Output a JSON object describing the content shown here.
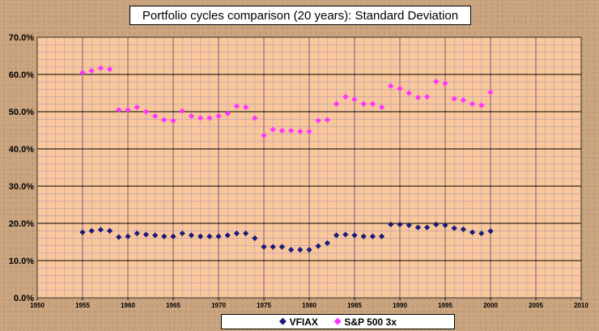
{
  "chart_data": {
    "type": "scatter",
    "title": "Portfolio cycles comparison (20 years): Standard Deviation",
    "xlabel": "",
    "ylabel": "",
    "xlim": [
      1950,
      2010
    ],
    "ylim": [
      0,
      70
    ],
    "x_ticks": [
      "1950",
      "1955",
      "1960",
      "1965",
      "1970",
      "1975",
      "1980",
      "1985",
      "1990",
      "1995",
      "2000",
      "2005",
      "2010"
    ],
    "y_ticks": [
      "0.0%",
      "10.0%",
      "20.0%",
      "30.0%",
      "40.0%",
      "50.0%",
      "60.0%",
      "70.0%"
    ],
    "grid": true,
    "legend_position": "bottom",
    "x": [
      1955,
      1956,
      1957,
      1958,
      1959,
      1960,
      1961,
      1962,
      1963,
      1964,
      1965,
      1966,
      1967,
      1968,
      1969,
      1970,
      1971,
      1972,
      1973,
      1974,
      1975,
      1976,
      1977,
      1978,
      1979,
      1980,
      1981,
      1982,
      1983,
      1984,
      1985,
      1986,
      1987,
      1988,
      1989,
      1990,
      1991,
      1992,
      1993,
      1994,
      1995,
      1996,
      1997,
      1998,
      1999,
      2000
    ],
    "series": [
      {
        "name": "VFIAX",
        "color": "#1a1a7a",
        "values": [
          17.6,
          18.0,
          18.3,
          18.0,
          16.3,
          16.5,
          17.3,
          17.0,
          16.8,
          16.5,
          16.5,
          17.3,
          16.8,
          16.5,
          16.5,
          16.5,
          16.8,
          17.3,
          17.3,
          16.0,
          13.7,
          13.7,
          13.7,
          12.9,
          12.9,
          12.9,
          13.9,
          14.7,
          16.8,
          17.0,
          16.8,
          16.5,
          16.5,
          16.5,
          19.7,
          19.7,
          19.5,
          18.9,
          18.9,
          19.7,
          19.5,
          18.7,
          18.4,
          17.6,
          17.3,
          17.9
        ]
      },
      {
        "name": "S&P 500 3x",
        "color": "#ff33ff",
        "values": [
          60.5,
          61.0,
          61.7,
          61.4,
          50.5,
          50.5,
          51.2,
          50.0,
          48.8,
          47.8,
          47.6,
          50.2,
          48.8,
          48.3,
          48.3,
          48.8,
          49.5,
          51.5,
          51.2,
          48.3,
          43.6,
          45.2,
          44.9,
          44.9,
          44.7,
          44.7,
          47.6,
          47.8,
          52.1,
          54.0,
          53.3,
          52.1,
          52.1,
          51.2,
          56.9,
          56.2,
          55.0,
          53.8,
          54.0,
          58.1,
          57.6,
          53.5,
          53.1,
          52.1,
          51.7,
          55.2
        ]
      }
    ]
  }
}
